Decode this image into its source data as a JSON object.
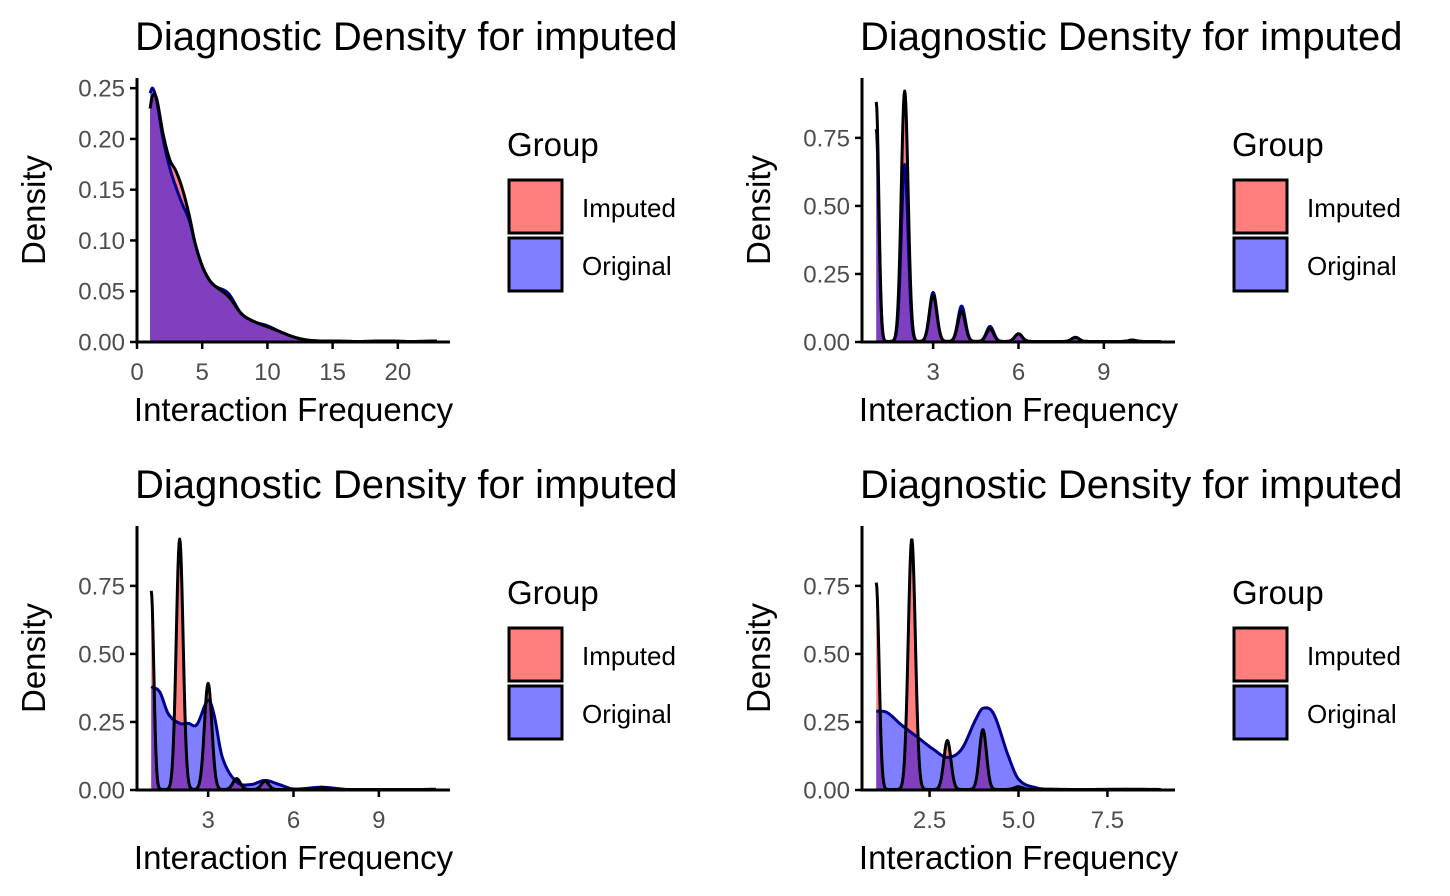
{
  "colors": {
    "imputed_fill": "#FF0000",
    "original_fill": "#0000FF",
    "fill_alpha": 0.5,
    "imputed_line": "#000000",
    "original_line": "#00008B",
    "axis": "#000000",
    "tick_text": "#4d4d4d"
  },
  "legend": {
    "title": "Group",
    "items": [
      {
        "label": "Imputed",
        "color": "#FF0000"
      },
      {
        "label": "Original",
        "color": "#0000FF"
      }
    ]
  },
  "chart_data": [
    {
      "type": "area",
      "title": "Diagnostic Density for imputed",
      "xlabel": "Interaction Frequency",
      "ylabel": "Density",
      "xlim": [
        0,
        24
      ],
      "ylim": [
        0,
        0.26
      ],
      "xticks": [
        0,
        5,
        10,
        15,
        20
      ],
      "xtick_labels": [
        "0",
        "5",
        "10",
        "15",
        "20"
      ],
      "yticks": [
        0,
        0.05,
        0.1,
        0.15,
        0.2,
        0.25
      ],
      "ytick_labels": [
        "0.00",
        "0.05",
        "0.10",
        "0.15",
        "0.20",
        "0.25"
      ],
      "x_range": [
        1,
        23
      ],
      "series": [
        {
          "name": "Imputed",
          "kind": "smooth",
          "points": [
            [
              1,
              0.23
            ],
            [
              1.2,
              0.243
            ],
            [
              1.5,
              0.24
            ],
            [
              2,
              0.205
            ],
            [
              2.5,
              0.18
            ],
            [
              3,
              0.168
            ],
            [
              3.5,
              0.15
            ],
            [
              4,
              0.125
            ],
            [
              4.5,
              0.095
            ],
            [
              5,
              0.075
            ],
            [
              5.5,
              0.062
            ],
            [
              6,
              0.055
            ],
            [
              7,
              0.045
            ],
            [
              8,
              0.028
            ],
            [
              9,
              0.02
            ],
            [
              10,
              0.015
            ],
            [
              11,
              0.01
            ],
            [
              12,
              0.005
            ],
            [
              13,
              0.002
            ],
            [
              14,
              0.001
            ],
            [
              15,
              0.001
            ],
            [
              17,
              0.0005
            ],
            [
              19,
              0.001
            ],
            [
              21,
              0.0005
            ],
            [
              23,
              0.001
            ]
          ]
        },
        {
          "name": "Original",
          "kind": "smooth",
          "points": [
            [
              1,
              0.245
            ],
            [
              1.2,
              0.25
            ],
            [
              1.5,
              0.238
            ],
            [
              2,
              0.2
            ],
            [
              2.5,
              0.172
            ],
            [
              3,
              0.152
            ],
            [
              3.5,
              0.135
            ],
            [
              4,
              0.12
            ],
            [
              4.5,
              0.095
            ],
            [
              5,
              0.075
            ],
            [
              5.5,
              0.062
            ],
            [
              6,
              0.055
            ],
            [
              7,
              0.048
            ],
            [
              8,
              0.028
            ],
            [
              9,
              0.02
            ],
            [
              10,
              0.016
            ],
            [
              11,
              0.01
            ],
            [
              12,
              0.005
            ],
            [
              13,
              0.002
            ],
            [
              14,
              0.001
            ],
            [
              15,
              0.001
            ],
            [
              17,
              0.0005
            ],
            [
              19,
              0.001
            ],
            [
              21,
              0.0005
            ],
            [
              23,
              0.001
            ]
          ]
        }
      ]
    },
    {
      "type": "area",
      "title": "Diagnostic Density for imputed",
      "xlabel": "Interaction Frequency",
      "ylabel": "Density",
      "xlim": [
        0.5,
        11.5
      ],
      "ylim": [
        0,
        0.97
      ],
      "xticks": [
        3,
        6,
        9
      ],
      "xtick_labels": [
        "3",
        "6",
        "9"
      ],
      "yticks": [
        0,
        0.25,
        0.5,
        0.75
      ],
      "ytick_labels": [
        "0.00",
        "0.25",
        "0.50",
        "0.75"
      ],
      "x_range": [
        1,
        11
      ],
      "series": [
        {
          "name": "Imputed",
          "kind": "peaks",
          "baseline": 0.002,
          "peaks": [
            [
              1,
              0.88,
              0.09
            ],
            [
              2,
              0.92,
              0.12
            ],
            [
              3,
              0.17,
              0.13
            ],
            [
              4,
              0.11,
              0.13
            ],
            [
              5,
              0.045,
              0.13
            ],
            [
              6,
              0.028,
              0.13
            ],
            [
              8,
              0.015,
              0.13
            ],
            [
              10,
              0.005,
              0.13
            ]
          ]
        },
        {
          "name": "Original",
          "kind": "peaks",
          "baseline": 0.002,
          "peaks": [
            [
              1,
              0.78,
              0.09
            ],
            [
              2,
              0.65,
              0.12
            ],
            [
              3,
              0.18,
              0.13
            ],
            [
              4,
              0.13,
              0.13
            ],
            [
              5,
              0.055,
              0.13
            ],
            [
              6,
              0.028,
              0.13
            ],
            [
              8,
              0.015,
              0.13
            ],
            [
              10,
              0.005,
              0.13
            ]
          ]
        }
      ]
    },
    {
      "type": "area",
      "title": "Diagnostic Density for imputed",
      "xlabel": "Interaction Frequency",
      "ylabel": "Density",
      "xlim": [
        0.5,
        11.5
      ],
      "ylim": [
        0,
        0.97
      ],
      "xticks": [
        3,
        6,
        9
      ],
      "xtick_labels": [
        "3",
        "6",
        "9"
      ],
      "yticks": [
        0,
        0.25,
        0.5,
        0.75
      ],
      "ytick_labels": [
        "0.00",
        "0.25",
        "0.50",
        "0.75"
      ],
      "x_range": [
        1,
        11
      ],
      "series": [
        {
          "name": "Imputed",
          "kind": "peaks",
          "baseline": 0.002,
          "peaks": [
            [
              1,
              0.73,
              0.09
            ],
            [
              2,
              0.92,
              0.12
            ],
            [
              3,
              0.39,
              0.13
            ],
            [
              4,
              0.04,
              0.13
            ],
            [
              5,
              0.03,
              0.13
            ],
            [
              7,
              0.008,
              0.13
            ]
          ]
        },
        {
          "name": "Original",
          "kind": "smooth",
          "points": [
            [
              1,
              0.38
            ],
            [
              1.3,
              0.36
            ],
            [
              1.6,
              0.28
            ],
            [
              2,
              0.245
            ],
            [
              2.3,
              0.245
            ],
            [
              2.6,
              0.24
            ],
            [
              3,
              0.33
            ],
            [
              3.2,
              0.28
            ],
            [
              3.5,
              0.12
            ],
            [
              4,
              0.03
            ],
            [
              4.5,
              0.02
            ],
            [
              5,
              0.035
            ],
            [
              5.5,
              0.02
            ],
            [
              6,
              0.004
            ],
            [
              7,
              0.01
            ],
            [
              8,
              0.001
            ],
            [
              9,
              0.001
            ],
            [
              10,
              0.001
            ],
            [
              11,
              0.003
            ]
          ]
        }
      ]
    },
    {
      "type": "area",
      "title": "Diagnostic Density for imputed",
      "xlabel": "Interaction Frequency",
      "ylabel": "Density",
      "xlim": [
        0.6,
        9.4
      ],
      "ylim": [
        0,
        0.97
      ],
      "xticks": [
        2.5,
        5.0,
        7.5
      ],
      "xtick_labels": [
        "2.5",
        "5.0",
        "7.5"
      ],
      "yticks": [
        0,
        0.25,
        0.5,
        0.75
      ],
      "ytick_labels": [
        "0.00",
        "0.25",
        "0.50",
        "0.75"
      ],
      "x_range": [
        1,
        9
      ],
      "series": [
        {
          "name": "Imputed",
          "kind": "peaks",
          "baseline": 0.002,
          "peaks": [
            [
              1,
              0.76,
              0.08
            ],
            [
              2,
              0.92,
              0.1
            ],
            [
              3,
              0.18,
              0.1
            ],
            [
              4,
              0.22,
              0.1
            ],
            [
              5,
              0.01,
              0.12
            ]
          ]
        },
        {
          "name": "Original",
          "kind": "smooth",
          "points": [
            [
              1,
              0.29
            ],
            [
              1.3,
              0.285
            ],
            [
              1.7,
              0.24
            ],
            [
              2.2,
              0.19
            ],
            [
              2.6,
              0.15
            ],
            [
              3,
              0.12
            ],
            [
              3.4,
              0.15
            ],
            [
              3.8,
              0.26
            ],
            [
              4,
              0.3
            ],
            [
              4.3,
              0.28
            ],
            [
              4.7,
              0.13
            ],
            [
              5,
              0.04
            ],
            [
              5.5,
              0.008
            ],
            [
              6,
              0.003
            ],
            [
              7,
              0.002
            ],
            [
              8,
              0.003
            ],
            [
              9,
              0.002
            ]
          ]
        }
      ]
    }
  ]
}
